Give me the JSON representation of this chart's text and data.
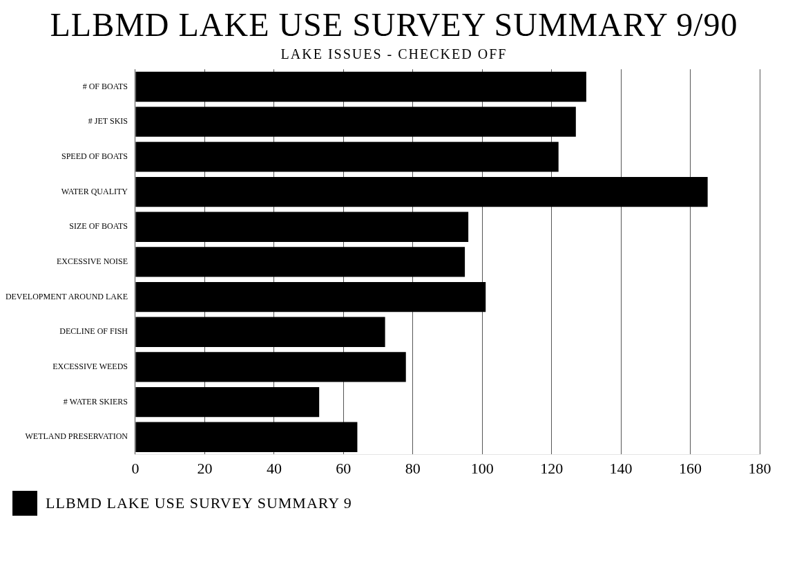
{
  "chart_data": {
    "type": "bar",
    "orientation": "horizontal",
    "title": "LLBMD LAKE USE SURVEY SUMMARY  9/90",
    "subtitle": "LAKE ISSUES - CHECKED OFF",
    "categories": [
      "# OF BOATS",
      "# JET SKIS",
      "SPEED OF BOATS",
      "WATER QUALITY",
      "SIZE OF BOATS",
      "EXCESSIVE NOISE",
      "DEVELOPMENT AROUND LAKE",
      "DECLINE OF FISH",
      "EXCESSIVE WEEDS",
      "# WATER SKIERS",
      "WETLAND PRESERVATION"
    ],
    "series": [
      {
        "name": "LLBMD LAKE USE SURVEY SUMMARY  9",
        "color": "#000000",
        "values": [
          130,
          127,
          122,
          165,
          96,
          95,
          101,
          72,
          78,
          53,
          64
        ]
      }
    ],
    "xlim": [
      0,
      180
    ],
    "xticks": [
      0,
      20,
      40,
      60,
      80,
      100,
      120,
      140,
      160,
      180
    ],
    "grid": "x",
    "legend": "bottom left"
  }
}
